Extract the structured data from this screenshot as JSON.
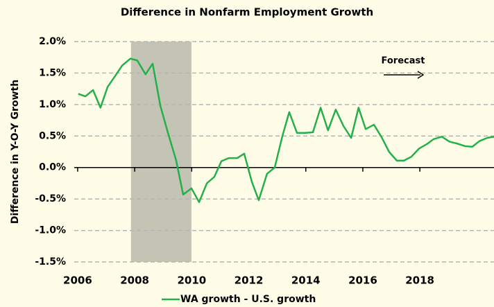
{
  "chart_data": {
    "type": "line",
    "title": "Difference in Nonfarm Employment Growth",
    "ylabel": "Difference in Y-O-Y Growth",
    "annotation": "Forecast",
    "shaded_band": [
      2007.87,
      2009.99
    ],
    "band_color": "#c4c4b4",
    "x": [
      2006.02,
      2006.27,
      2006.54,
      2006.8,
      2007.05,
      2007.31,
      2007.56,
      2007.85,
      2008.09,
      2008.38,
      2008.63,
      2008.9,
      2009.16,
      2009.45,
      2009.7,
      2009.99,
      2010.26,
      2010.53,
      2010.79,
      2011.04,
      2011.3,
      2011.6,
      2011.84,
      2012.11,
      2012.35,
      2012.64,
      2012.91,
      2013.18,
      2013.42,
      2013.69,
      2013.98,
      2014.25,
      2014.52,
      2014.78,
      2015.05,
      2015.32,
      2015.59,
      2015.85,
      2016.1,
      2016.39,
      2016.66,
      2016.92,
      2017.19,
      2017.44,
      2017.7,
      2017.97,
      2018.24,
      2018.48,
      2018.77,
      2019.04,
      2019.31,
      2019.58,
      2019.84,
      2020.09,
      2020.36,
      2020.6
    ],
    "series": [
      {
        "name": "WA growth - U.S. growth",
        "color": "#22b04a",
        "values": [
          1.17,
          1.13,
          1.23,
          0.95,
          1.28,
          1.45,
          1.62,
          1.73,
          1.7,
          1.48,
          1.65,
          0.98,
          0.56,
          0.12,
          -0.43,
          -0.33,
          -0.55,
          -0.25,
          -0.15,
          0.1,
          0.15,
          0.15,
          0.22,
          -0.23,
          -0.52,
          -0.1,
          0.0,
          0.5,
          0.88,
          0.55,
          0.55,
          0.56,
          0.95,
          0.59,
          0.92,
          0.66,
          0.47,
          0.95,
          0.61,
          0.68,
          0.48,
          0.25,
          0.11,
          0.11,
          0.17,
          0.3,
          0.37,
          0.45,
          0.49,
          0.41,
          0.38,
          0.34,
          0.33,
          0.42,
          0.47,
          0.49
        ]
      }
    ],
    "xlim": [
      2005.88,
      2020.6
    ],
    "xticks": [
      2006,
      2008,
      2010,
      2012,
      2014,
      2016,
      2018
    ],
    "ylim": [
      -1.5,
      2.0
    ],
    "yticks": [
      {
        "value": -1.5,
        "label": "-1.5%"
      },
      {
        "value": -1.0,
        "label": "-1.0%"
      },
      {
        "value": -0.5,
        "label": "-0.5%"
      },
      {
        "value": 0.0,
        "label": "0.0%"
      },
      {
        "value": 0.5,
        "label": "0.5%"
      },
      {
        "value": 1.0,
        "label": "1.0%"
      },
      {
        "value": 1.5,
        "label": "1.5%"
      },
      {
        "value": 2.0,
        "label": "2.0%"
      }
    ],
    "grid": true
  }
}
